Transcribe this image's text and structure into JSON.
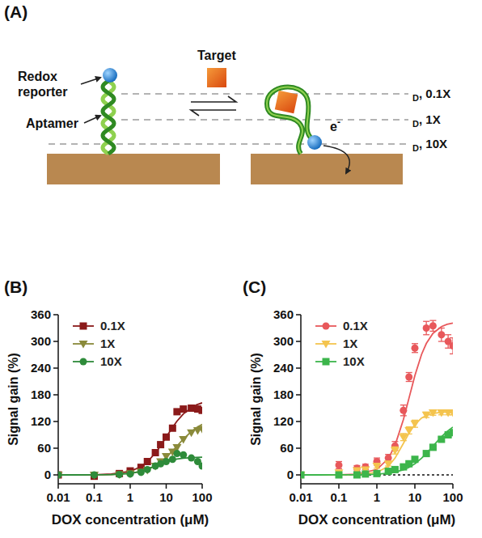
{
  "diagram": {
    "label": "(A)",
    "redox_reporter": "Redox reporter",
    "aptamer": "Aptamer",
    "target": "Target",
    "electron": {
      "text": "e",
      "superscript": "-"
    },
    "distance_labels": [
      {
        "sub": "D",
        "text": ", 0.1X"
      },
      {
        "sub": "D",
        "text": ", 1X"
      },
      {
        "sub": "D",
        "text": ", 10X"
      }
    ]
  },
  "chart_data": [
    {
      "type": "scatter",
      "title": "(B)",
      "x_label": "DOX concentration (μM)",
      "y_label": "Signal gain (%)",
      "log": "x",
      "xlim": [
        0.01,
        100
      ],
      "xticks": [
        0.01,
        0.1,
        1,
        10,
        100
      ],
      "ylim": [
        -20,
        360
      ],
      "yticks": [
        0,
        60,
        120,
        180,
        240,
        300,
        360
      ],
      "legend": "top-left",
      "x": [
        0.01,
        0.1,
        0.5,
        1,
        2,
        3,
        5,
        7,
        10,
        15,
        20,
        30,
        50,
        75,
        100
      ],
      "fit_x": [
        0.01,
        0.03,
        0.1,
        0.3,
        1,
        2,
        3,
        5,
        7,
        10,
        15,
        20,
        30,
        50,
        70,
        100
      ],
      "series": [
        {
          "name": "0.1X",
          "color": "#8b1a1a",
          "marker": "square",
          "values": [
            0,
            -3,
            3,
            9,
            17,
            30,
            50,
            68,
            85,
            105,
            142,
            148,
            150,
            148,
            145
          ],
          "fit": [
            0,
            0.1,
            0.4,
            1.8,
            8.1,
            18.6,
            29.4,
            49,
            65.6,
            85,
            106.9,
            120.9,
            137,
            151,
            157.5,
            161.9
          ]
        },
        {
          "name": "1X",
          "color": "#8a8a3a",
          "marker": "triangle-down",
          "values": [
            0,
            0,
            1,
            3,
            7,
            11,
            20,
            30,
            42,
            52,
            62,
            80,
            95,
            100,
            103
          ],
          "fit": [
            0,
            0.1,
            0.2,
            0.8,
            3.5,
            7.7,
            12.1,
            20.7,
            28.7,
            39.4,
            53.9,
            65,
            80.5,
            97.5,
            106.4,
            113.5
          ]
        },
        {
          "name": "10X",
          "color": "#2e8b3a",
          "marker": "circle",
          "values": [
            0,
            0,
            1,
            2,
            6,
            12,
            20,
            25,
            30,
            35,
            48,
            45,
            38,
            30,
            20
          ],
          "fit": [
            0,
            0,
            0.1,
            0.6,
            3.3,
            8.1,
            12.7,
            20,
            24.9,
            29.6,
            33.5,
            35.6,
            37.5,
            38.8,
            39.3,
            39.6
          ]
        }
      ]
    },
    {
      "type": "scatter",
      "title": "(C)",
      "x_label": "DOX concentration (μM)",
      "y_label": "Signal gain (%)",
      "log": "x",
      "xlim": [
        0.01,
        100
      ],
      "xticks": [
        0.01,
        0.1,
        1,
        10,
        100
      ],
      "ylim": [
        -20,
        360
      ],
      "yticks": [
        0,
        60,
        120,
        180,
        240,
        300,
        360
      ],
      "legend": "top-left",
      "baseline": 0,
      "x": [
        0.01,
        0.1,
        0.3,
        0.5,
        1,
        2,
        3,
        5,
        7,
        10,
        20,
        30,
        50,
        75,
        100
      ],
      "fit_x": [
        0.01,
        0.03,
        0.1,
        0.3,
        1,
        2,
        3,
        5,
        7,
        10,
        15,
        20,
        30,
        50,
        70,
        100
      ],
      "series": [
        {
          "name": "0.1X",
          "color": "#e8585b",
          "marker": "circle",
          "values": [
            0,
            22,
            15,
            18,
            30,
            38,
            65,
            145,
            220,
            285,
            330,
            335,
            315,
            300,
            290
          ],
          "errors": [
            0,
            8,
            6,
            6,
            8,
            8,
            10,
            12,
            10,
            10,
            15,
            12,
            15,
            15,
            18
          ],
          "fit": [
            0,
            0,
            0.3,
            1.6,
            12.2,
            36.7,
            66.1,
            124.5,
            172.5,
            223.3,
            271,
            295.4,
            318.2,
            333.2,
            338.3,
            341.3
          ]
        },
        {
          "name": "1X",
          "color": "#f4c44e",
          "marker": "triangle-down",
          "values": [
            0,
            5,
            10,
            12,
            20,
            25,
            55,
            85,
            100,
            115,
            135,
            140,
            140,
            140,
            140
          ],
          "errors": [
            0,
            4,
            4,
            4,
            5,
            5,
            8,
            8,
            8,
            8,
            6,
            6,
            5,
            5,
            5
          ],
          "fit": [
            0,
            0,
            0.1,
            0.5,
            5.5,
            19.6,
            37.6,
            71,
            94,
            113.6,
            127.8,
            133.6,
            138.2,
            140.6,
            141.3,
            141.6
          ]
        },
        {
          "name": "10X",
          "color": "#3cb54b",
          "marker": "square",
          "values": [
            0,
            0,
            0,
            2,
            3,
            8,
            12,
            18,
            25,
            35,
            48,
            62,
            80,
            90,
            95
          ],
          "errors": [
            0,
            2,
            2,
            2,
            2,
            3,
            3,
            3,
            3,
            3,
            3,
            3,
            3,
            4,
            6
          ],
          "fit": [
            0,
            0,
            0.1,
            0.3,
            1.5,
            3.7,
            6.2,
            11.5,
            17,
            25.1,
            37.5,
            48.2,
            65,
            85.8,
            97.6,
            107.5
          ]
        }
      ]
    }
  ]
}
